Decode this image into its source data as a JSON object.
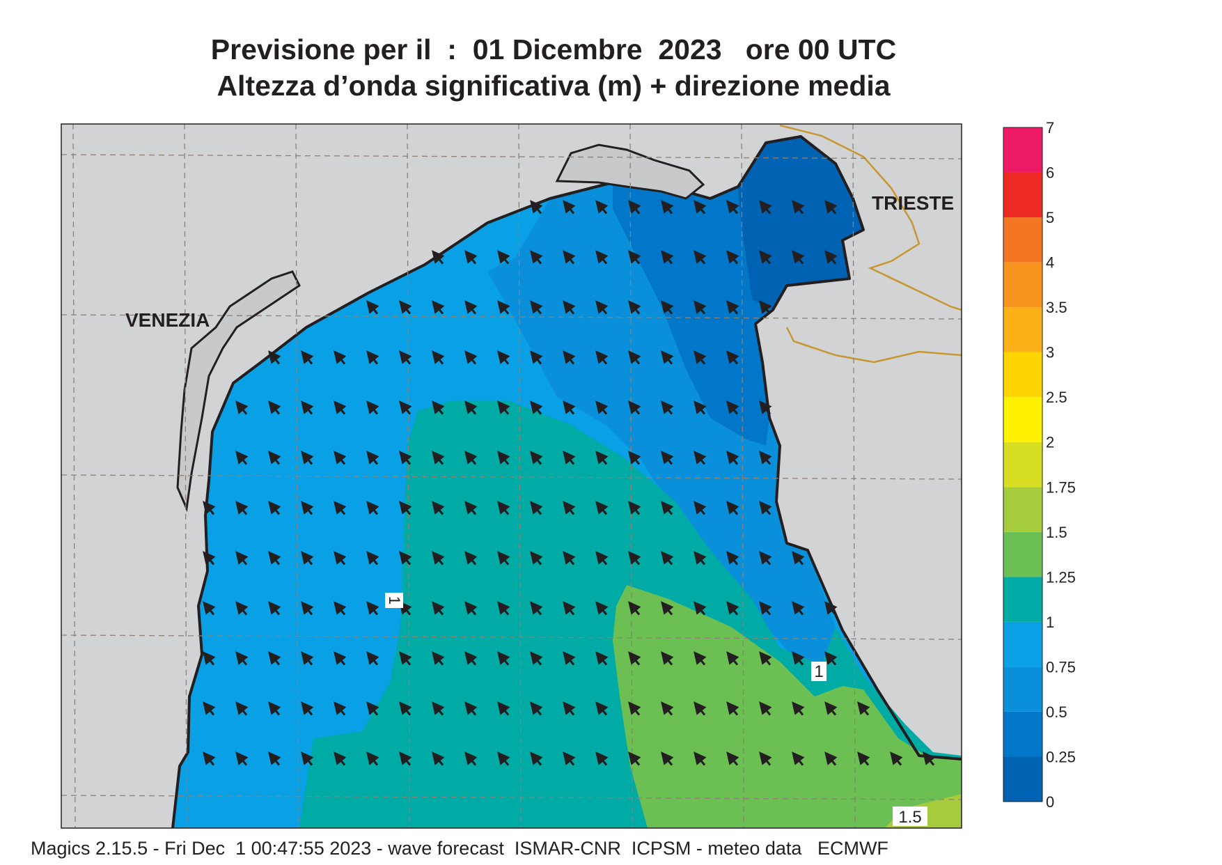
{
  "title": {
    "line1": "Previsione per il  :  01 Dicembre  2023   ore 00 UTC",
    "line2": "Altezza d’onda significativa (m) + direzione media"
  },
  "map": {
    "labels": {
      "venezia": "VENEZIA",
      "trieste": "TRIESTE"
    },
    "contour_labels": [
      "1",
      "1",
      "1.5"
    ],
    "land_color": "#d2d3d5",
    "coast_color": "#231f20",
    "border_color": "#c8962e",
    "arrow_direction": "toward north-west"
  },
  "legend": {
    "levels": [
      "0",
      "0.25",
      "0.5",
      "0.75",
      "1",
      "1.25",
      "1.5",
      "1.75",
      "2",
      "2.5",
      "3",
      "3.5",
      "4",
      "5",
      "6",
      "7"
    ],
    "colors": [
      "#0062b2",
      "#0077c8",
      "#0a8fda",
      "#0aa0e6",
      "#00aaa5",
      "#6cbf52",
      "#a6cc3e",
      "#d8df22",
      "#fff200",
      "#ffd500",
      "#fbb117",
      "#f7941d",
      "#f37622",
      "#ee2a24",
      "#ed1b66"
    ]
  },
  "footer": "Magics 2.15.5 - Fri Dec  1 00:47:55 2023 - wave forecast  ISMAR-CNR  ICPSM - meteo data   ECMWF"
}
